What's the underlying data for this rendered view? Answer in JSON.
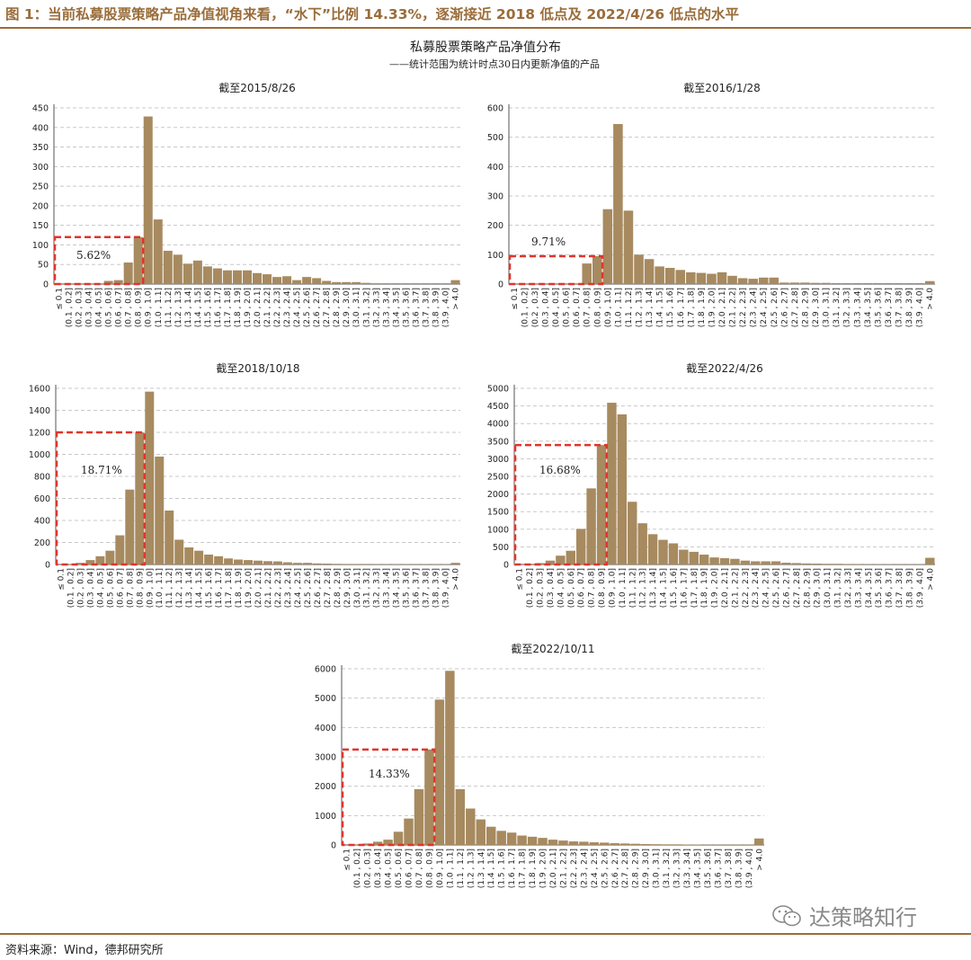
{
  "figure_title": "图 1：当前私募股票策略产品净值视角来看，“水下”比例 14.33%，逐渐接近 2018 低点及 2022/4/26 低点的水平",
  "main_title": "私募股票策略产品净值分布",
  "sub_title": "——统计范围为统计时点30日内更新净值的产品",
  "source": "资料来源：Wind，德邦研究所",
  "watermark": "达策略知行",
  "colors": {
    "bar": "#a78a5f",
    "rule": "#9a6d3a",
    "box": "#e0352b",
    "grid": "#c8c8c8"
  },
  "x_categories": [
    "≤ 0.1",
    "(0.1 , 0.2]",
    "(0.2 , 0.3]",
    "(0.3 , 0.4]",
    "(0.4 , 0.5]",
    "(0.5 , 0.6]",
    "(0.6 , 0.7]",
    "(0.7 , 0.8]",
    "(0.8 , 0.9]",
    "(0.9 , 1.0]",
    "(1.0 , 1.1]",
    "(1.1 , 1.2]",
    "(1.2 , 1.3]",
    "(1.3 , 1.4]",
    "(1.4 , 1.5]",
    "(1.5 , 1.6]",
    "(1.6 , 1.7]",
    "(1.7 , 1.8]",
    "(1.8 , 1.9]",
    "(1.9 , 2.0]",
    "(2.0 , 2.1]",
    "(2.1 , 2.2]",
    "(2.2 , 2.3]",
    "(2.3 , 2.4]",
    "(2.4 , 2.5]",
    "(2.5 , 2.6]",
    "(2.6 , 2.7]",
    "(2.7 , 2.8]",
    "(2.8 , 2.9]",
    "(2.9 , 3.0]",
    "(3.0 , 3.1]",
    "(3.1 , 3.2]",
    "(3.2 , 3.3]",
    "(3.3 , 3.4]",
    "(3.4 , 3.5]",
    "(3.5 , 3.6]",
    "(3.6 , 3.7]",
    "(3.7 , 3.8]",
    "(3.8 , 3.9]",
    "(3.9 , 4.0]",
    "> 4.0"
  ],
  "chart_data": [
    {
      "type": "bar",
      "title": "截至2015/8/26",
      "ylim": [
        0,
        450
      ],
      "yticks": [
        0,
        50,
        100,
        150,
        200,
        250,
        300,
        350,
        400,
        450
      ],
      "values": [
        0,
        0,
        0,
        0,
        0,
        8,
        10,
        55,
        120,
        428,
        165,
        85,
        75,
        52,
        60,
        45,
        40,
        35,
        35,
        35,
        28,
        25,
        18,
        20,
        10,
        18,
        15,
        8,
        5,
        5,
        5,
        3,
        2,
        2,
        2,
        2,
        2,
        2,
        2,
        2,
        10
      ],
      "underwater_label": "5.62%",
      "underwater_bins": 9,
      "grid": true
    },
    {
      "type": "bar",
      "title": "截至2016/1/28",
      "ylim": [
        0,
        600
      ],
      "yticks": [
        0,
        100,
        200,
        300,
        400,
        500,
        600
      ],
      "values": [
        0,
        0,
        0,
        0,
        0,
        0,
        0,
        70,
        95,
        255,
        545,
        250,
        100,
        85,
        60,
        55,
        48,
        40,
        38,
        35,
        40,
        28,
        20,
        18,
        22,
        22,
        5,
        5,
        5,
        4,
        4,
        3,
        3,
        3,
        3,
        3,
        3,
        3,
        3,
        3,
        10
      ],
      "underwater_label": "9.71%",
      "underwater_bins": 9,
      "grid": true
    },
    {
      "type": "bar",
      "title": "截至2018/10/18",
      "ylim": [
        0,
        1600
      ],
      "yticks": [
        0,
        200,
        400,
        600,
        800,
        1000,
        1200,
        1400,
        1600
      ],
      "values": [
        0,
        5,
        15,
        40,
        75,
        125,
        265,
        680,
        1200,
        1570,
        980,
        490,
        225,
        155,
        125,
        90,
        75,
        55,
        45,
        40,
        35,
        30,
        28,
        20,
        15,
        15,
        10,
        8,
        6,
        5,
        5,
        5,
        3,
        3,
        3,
        3,
        3,
        3,
        3,
        3,
        15
      ],
      "underwater_label": "18.71%",
      "underwater_bins": 9,
      "grid": true
    },
    {
      "type": "bar",
      "title": "截至2022/4/26",
      "ylim": [
        0,
        5000
      ],
      "yticks": [
        0,
        500,
        1000,
        1500,
        2000,
        2500,
        3000,
        3500,
        4000,
        4500,
        5000
      ],
      "values": [
        0,
        20,
        40,
        110,
        250,
        390,
        1010,
        2160,
        3390,
        4590,
        4260,
        1780,
        1170,
        860,
        700,
        600,
        420,
        360,
        280,
        200,
        180,
        160,
        110,
        90,
        90,
        90,
        50,
        40,
        30,
        25,
        20,
        20,
        15,
        15,
        10,
        10,
        10,
        10,
        10,
        10,
        190
      ],
      "underwater_label": "16.68%",
      "underwater_bins": 9,
      "grid": true
    },
    {
      "type": "bar",
      "title": "截至2022/10/11",
      "ylim": [
        0,
        6000
      ],
      "yticks": [
        0,
        1000,
        2000,
        3000,
        4000,
        5000,
        6000
      ],
      "values": [
        0,
        20,
        50,
        110,
        180,
        450,
        900,
        1900,
        3250,
        4950,
        5930,
        1900,
        1240,
        870,
        620,
        480,
        420,
        320,
        280,
        240,
        180,
        150,
        120,
        110,
        90,
        80,
        60,
        50,
        40,
        30,
        25,
        20,
        20,
        15,
        15,
        10,
        10,
        10,
        10,
        10,
        220
      ],
      "underwater_label": "14.33%",
      "underwater_bins": 9,
      "grid": true
    }
  ]
}
